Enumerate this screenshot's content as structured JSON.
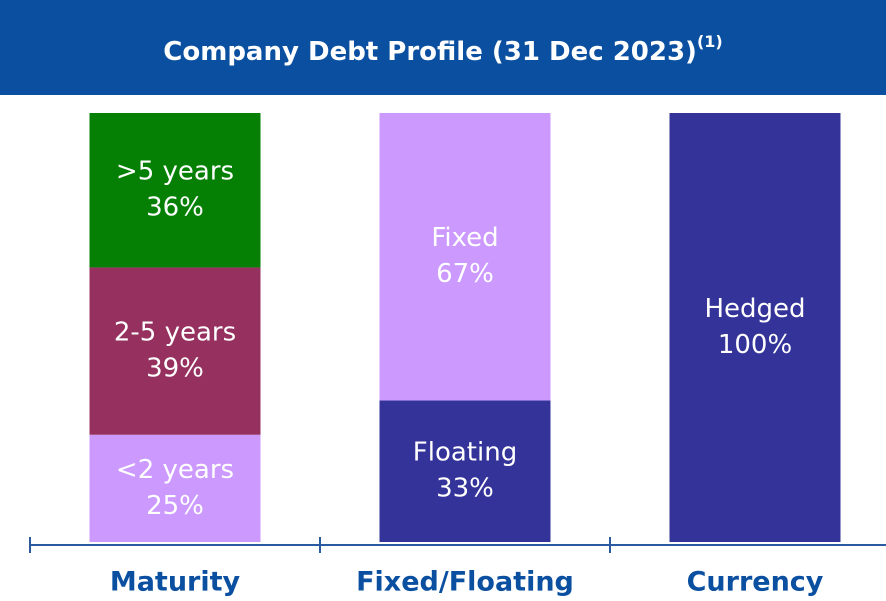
{
  "chart_data": {
    "type": "stacked-bar",
    "title": "Company Debt Profile (31 Dec 2023)",
    "title_note": "(1)",
    "categories": [
      "Maturity",
      "Fixed/Floating",
      "Currency"
    ],
    "ylim": [
      0,
      100
    ],
    "bars": [
      {
        "names": [
          "<2 years",
          "2-5 years",
          ">5 years"
        ],
        "values": [
          25,
          39,
          36
        ],
        "value_labels": [
          "25%",
          "39%",
          "36%"
        ],
        "colors": [
          "#cc99ff",
          "#96305f",
          "#058005"
        ]
      },
      {
        "names": [
          "Floating",
          "Fixed"
        ],
        "values": [
          33,
          67
        ],
        "value_labels": [
          "33%",
          "67%"
        ],
        "colors": [
          "#333399",
          "#cc99ff"
        ]
      },
      {
        "names": [
          "Hedged"
        ],
        "values": [
          100
        ],
        "value_labels": [
          "100%"
        ],
        "colors": [
          "#333399"
        ]
      }
    ]
  }
}
